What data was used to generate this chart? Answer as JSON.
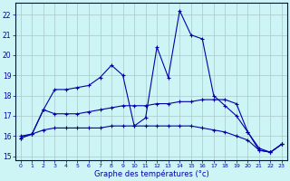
{
  "bg_color": "#cef5f5",
  "grid_color": "#a8c8c8",
  "line_color": "#0000aa",
  "xlabel": "Graphe des températures (°c)",
  "ylim": [
    14.8,
    22.6
  ],
  "xlim": [
    -0.5,
    23.5
  ],
  "yticks": [
    15,
    16,
    17,
    18,
    19,
    20,
    21,
    22
  ],
  "xticks": [
    0,
    1,
    2,
    3,
    4,
    5,
    6,
    7,
    8,
    9,
    10,
    11,
    12,
    13,
    14,
    15,
    16,
    17,
    18,
    19,
    20,
    21,
    22,
    23
  ],
  "curve1_x": [
    0,
    1,
    2,
    3,
    4,
    5,
    6,
    7,
    8,
    9,
    10,
    11,
    12,
    13,
    14,
    15,
    16,
    17,
    18,
    19,
    20,
    21,
    22,
    23
  ],
  "curve1_y": [
    15.9,
    16.1,
    17.3,
    18.3,
    18.3,
    18.4,
    18.5,
    18.9,
    19.5,
    19.0,
    16.5,
    16.9,
    20.4,
    18.9,
    22.2,
    21.0,
    20.8,
    18.0,
    17.5,
    17.0,
    16.2,
    15.3,
    15.2,
    15.6
  ],
  "curve2_x": [
    0,
    1,
    2,
    3,
    4,
    5,
    6,
    7,
    8,
    9,
    10,
    11,
    12,
    13,
    14,
    15,
    16,
    17,
    18,
    19,
    20,
    21,
    22,
    23
  ],
  "curve2_y": [
    16.0,
    16.1,
    17.3,
    17.1,
    17.1,
    17.1,
    17.2,
    17.3,
    17.4,
    17.5,
    17.5,
    17.5,
    17.6,
    17.6,
    17.7,
    17.7,
    17.8,
    17.8,
    17.8,
    17.6,
    16.2,
    15.4,
    15.2,
    15.6
  ],
  "curve3_x": [
    0,
    1,
    2,
    3,
    4,
    5,
    6,
    7,
    8,
    9,
    10,
    11,
    12,
    13,
    14,
    15,
    16,
    17,
    18,
    19,
    20,
    21,
    22,
    23
  ],
  "curve3_y": [
    15.9,
    16.1,
    16.3,
    16.4,
    16.4,
    16.4,
    16.4,
    16.4,
    16.5,
    16.5,
    16.5,
    16.5,
    16.5,
    16.5,
    16.5,
    16.5,
    16.4,
    16.3,
    16.2,
    16.0,
    15.8,
    15.3,
    15.2,
    15.6
  ]
}
